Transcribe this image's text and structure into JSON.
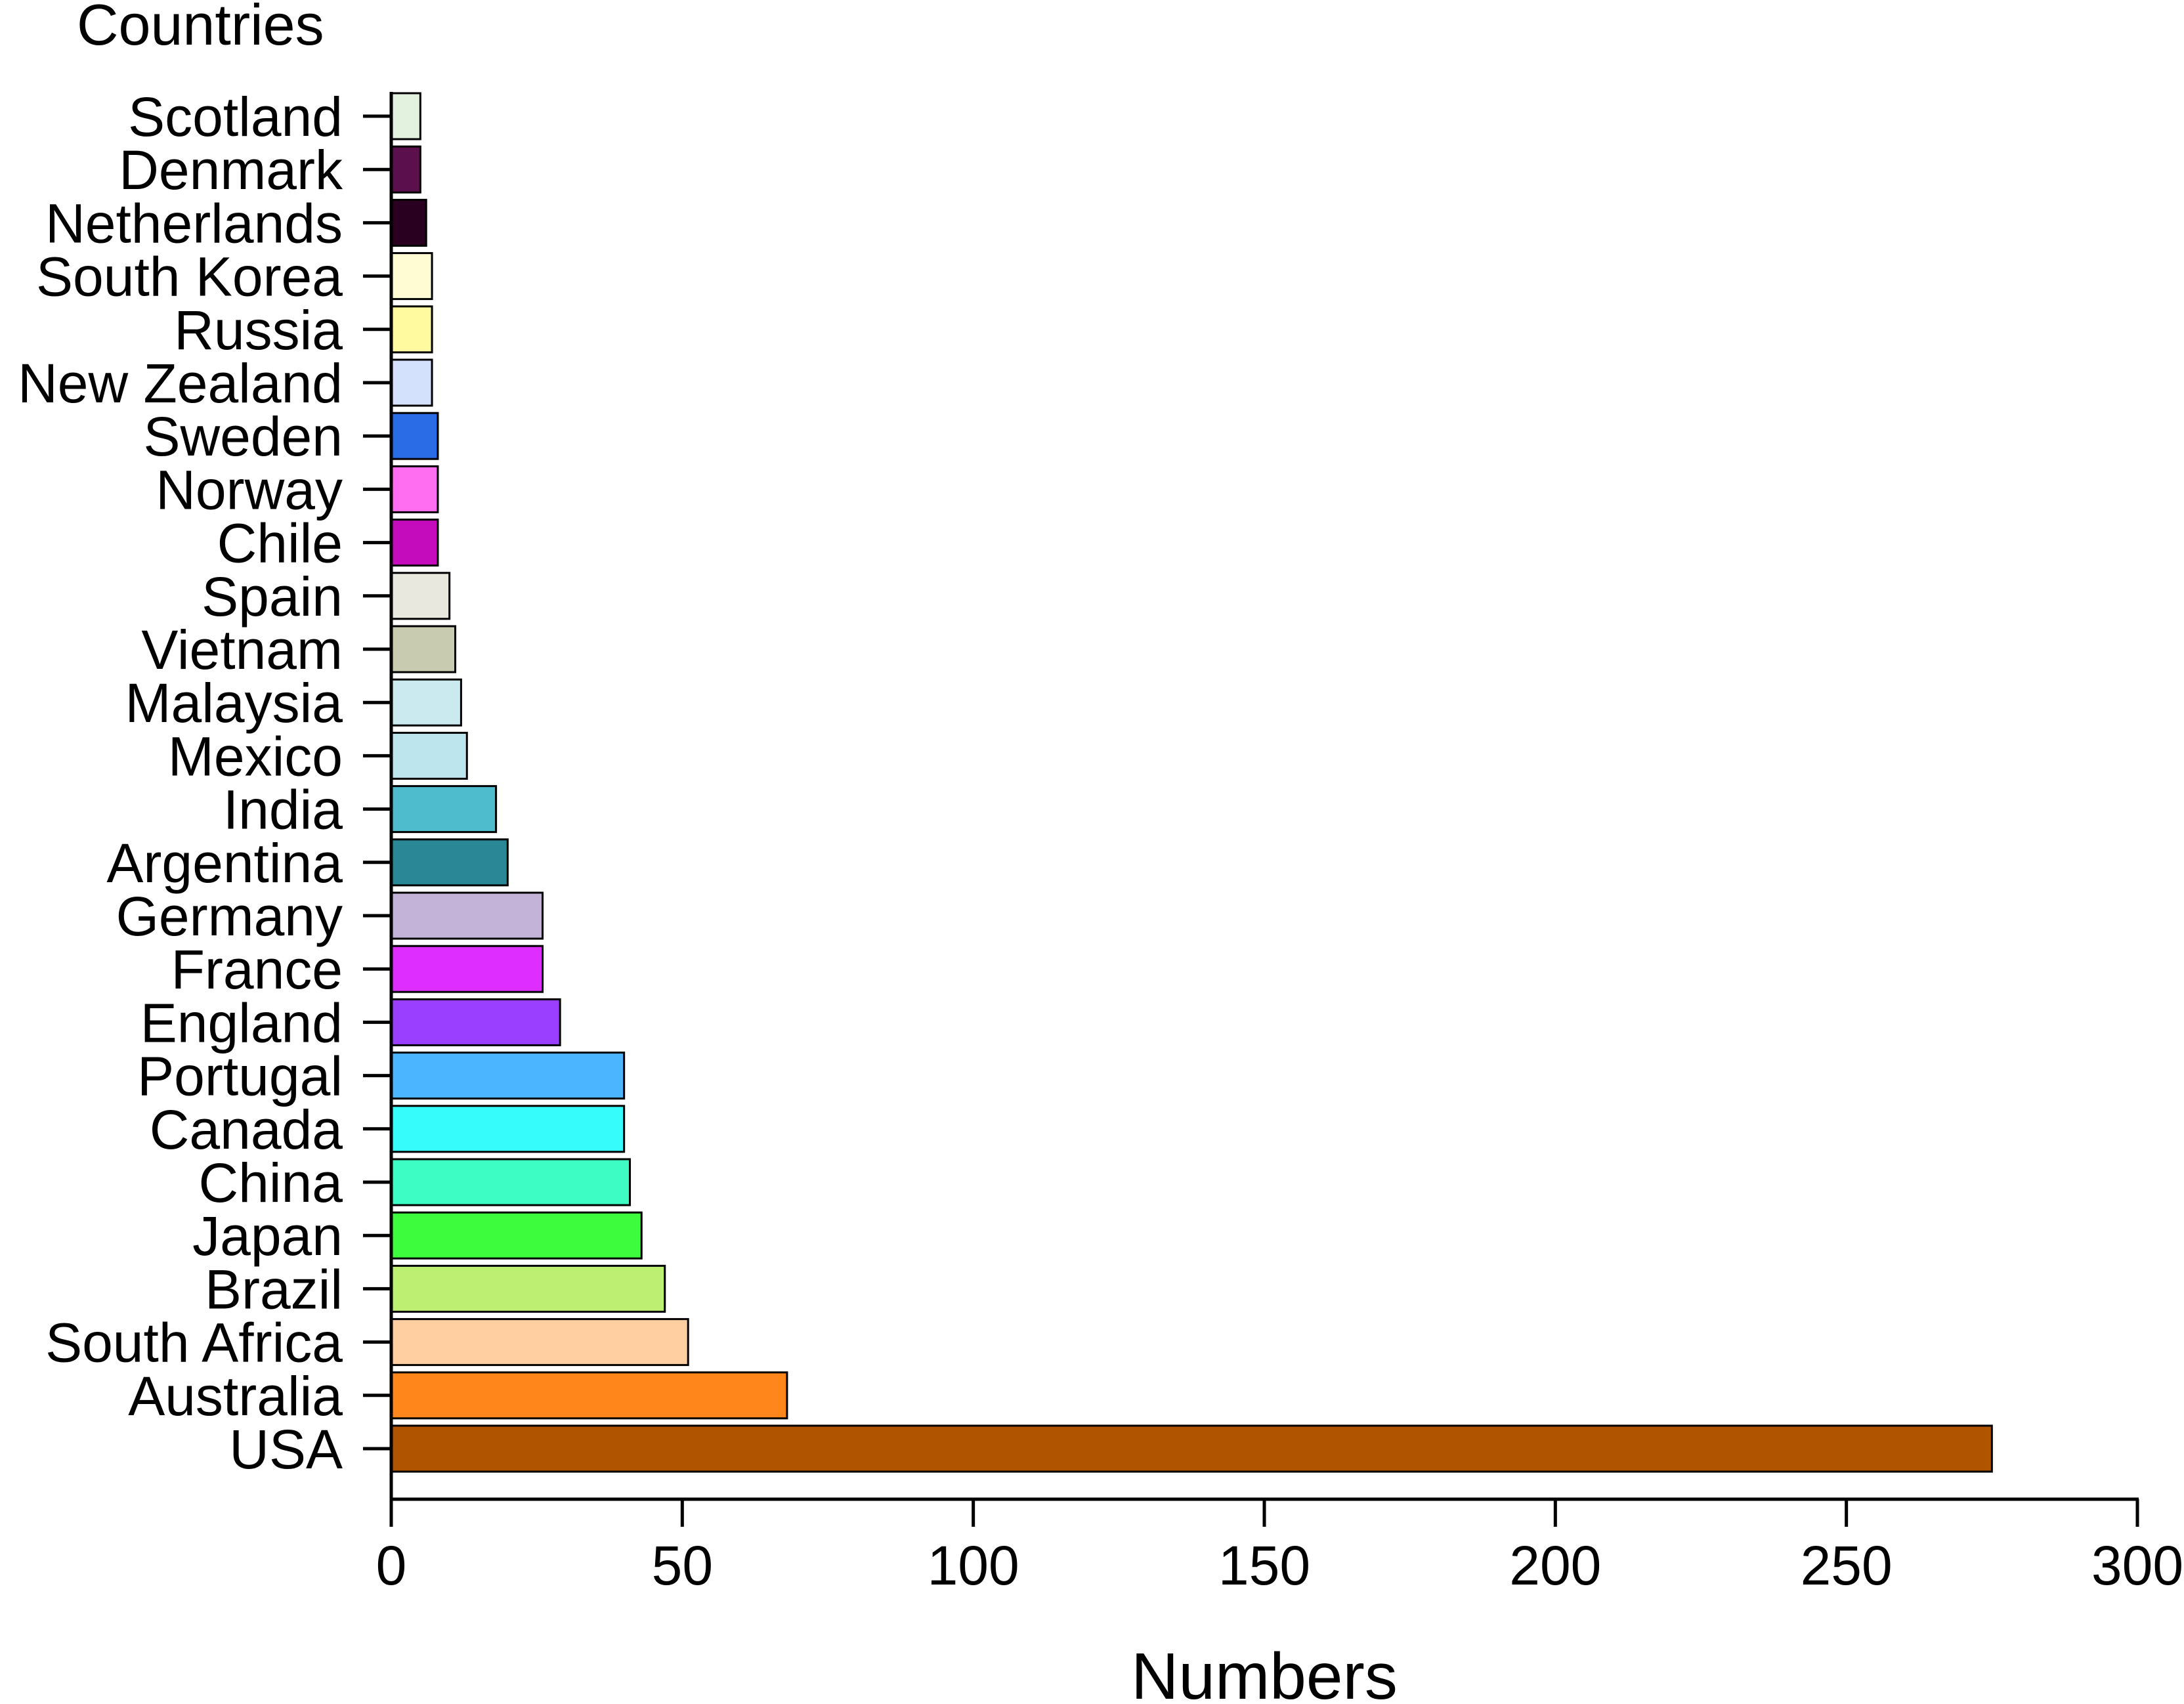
{
  "chart_data": {
    "type": "bar",
    "orientation": "horizontal",
    "ylabel": "Countries",
    "xlabel": "Numbers",
    "xlim": [
      0,
      300
    ],
    "xticks": [
      0,
      50,
      100,
      150,
      200,
      250,
      300
    ],
    "grid": false,
    "legend": "none",
    "categories": [
      "Scotland",
      "Denmark",
      "Netherlands",
      "South Korea",
      "Russia",
      "New Zealand",
      "Sweden",
      "Norway",
      "Chile",
      "Spain",
      "Vietnam",
      "Malaysia",
      "Mexico",
      "India",
      "Argentina",
      "Germany",
      "France",
      "England",
      "Portugal",
      "Canada",
      "China",
      "Japan",
      "Brazil",
      "South Africa",
      "Australia",
      "USA"
    ],
    "values": [
      5,
      5,
      6,
      7,
      7,
      7,
      8,
      8,
      8,
      10,
      11,
      12,
      13,
      18,
      20,
      26,
      26,
      29,
      40,
      40,
      41,
      43,
      47,
      51,
      68,
      275
    ],
    "colors": [
      "#e2f2df",
      "#5c0f4d",
      "#2a0020",
      "#fffcd4",
      "#fff9a0",
      "#d4e1fc",
      "#2a6be6",
      "#ff6ef0",
      "#c40cbc",
      "#e8e8de",
      "#c8cbb0",
      "#cbeaf0",
      "#bce5ee",
      "#4fbccd",
      "#2a8795",
      "#c4b3d8",
      "#dd2dff",
      "#9a3eff",
      "#4cb5ff",
      "#36fcfc",
      "#3dfcc4",
      "#3dfc3d",
      "#bdef72",
      "#ffcfa1",
      "#ff861a",
      "#b15400"
    ]
  }
}
